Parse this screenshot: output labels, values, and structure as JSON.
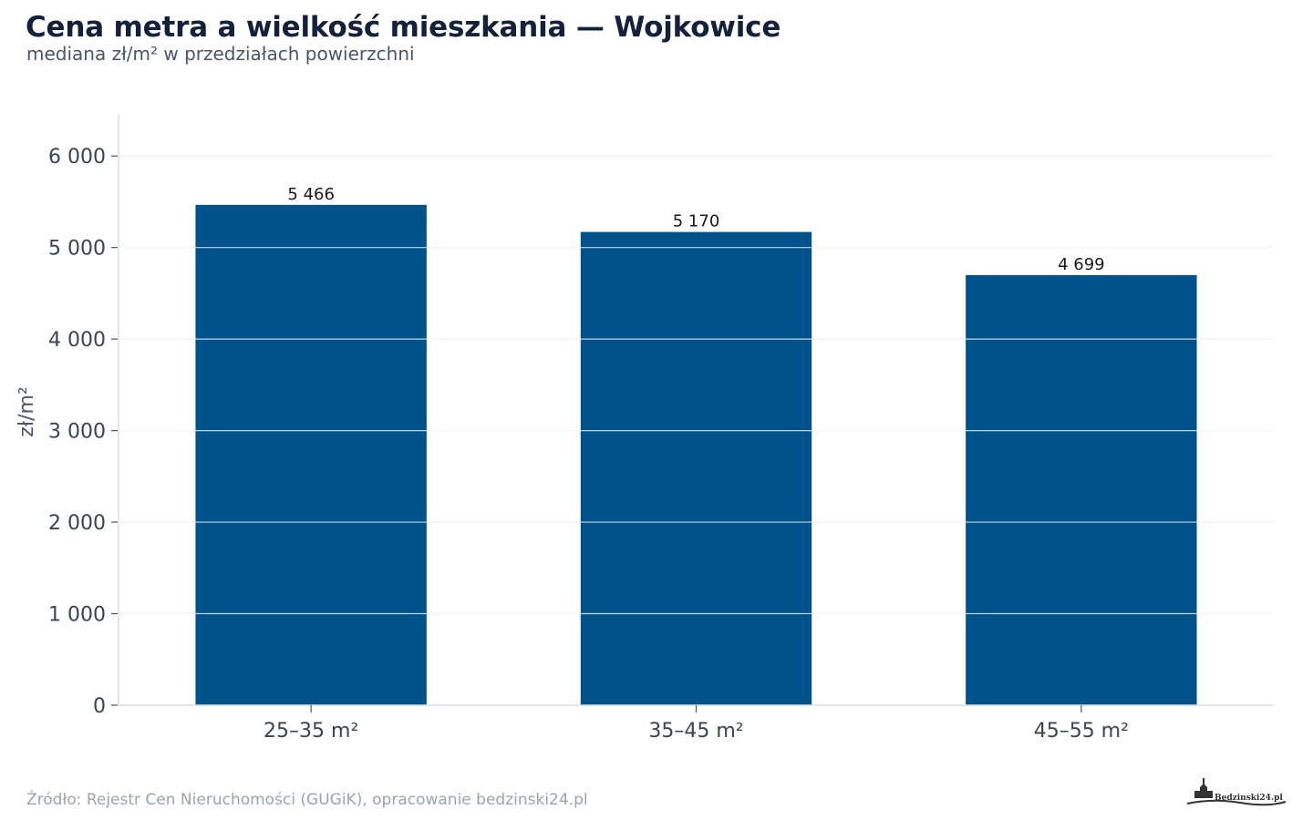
{
  "title": "Cena metra a wielkość mieszkania — Wojkowice",
  "subtitle": "mediana zł/m² w przedziałach powierzchni",
  "source": "Źródło: Rejestr Cen Nieruchomości (GUGiK), opracowanie bedzinski24.pl",
  "logo_text": "Będzinski24.pl",
  "chart_data": {
    "type": "bar",
    "categories": [
      "25–35 m²",
      "35–45 m²",
      "45–55 m²"
    ],
    "values": [
      5466,
      5170,
      4699
    ],
    "value_labels": [
      "5 466",
      "5 170",
      "4 699"
    ],
    "ylabel": "zł/m²",
    "ylim": [
      0,
      6450
    ],
    "yticks": [
      0,
      1000,
      2000,
      3000,
      4000,
      5000,
      6000
    ],
    "ytick_labels": [
      "0",
      "1 000",
      "2 000",
      "3 000",
      "4 000",
      "5 000",
      "6 000"
    ],
    "grid": true,
    "bar_color": "#00538a"
  }
}
